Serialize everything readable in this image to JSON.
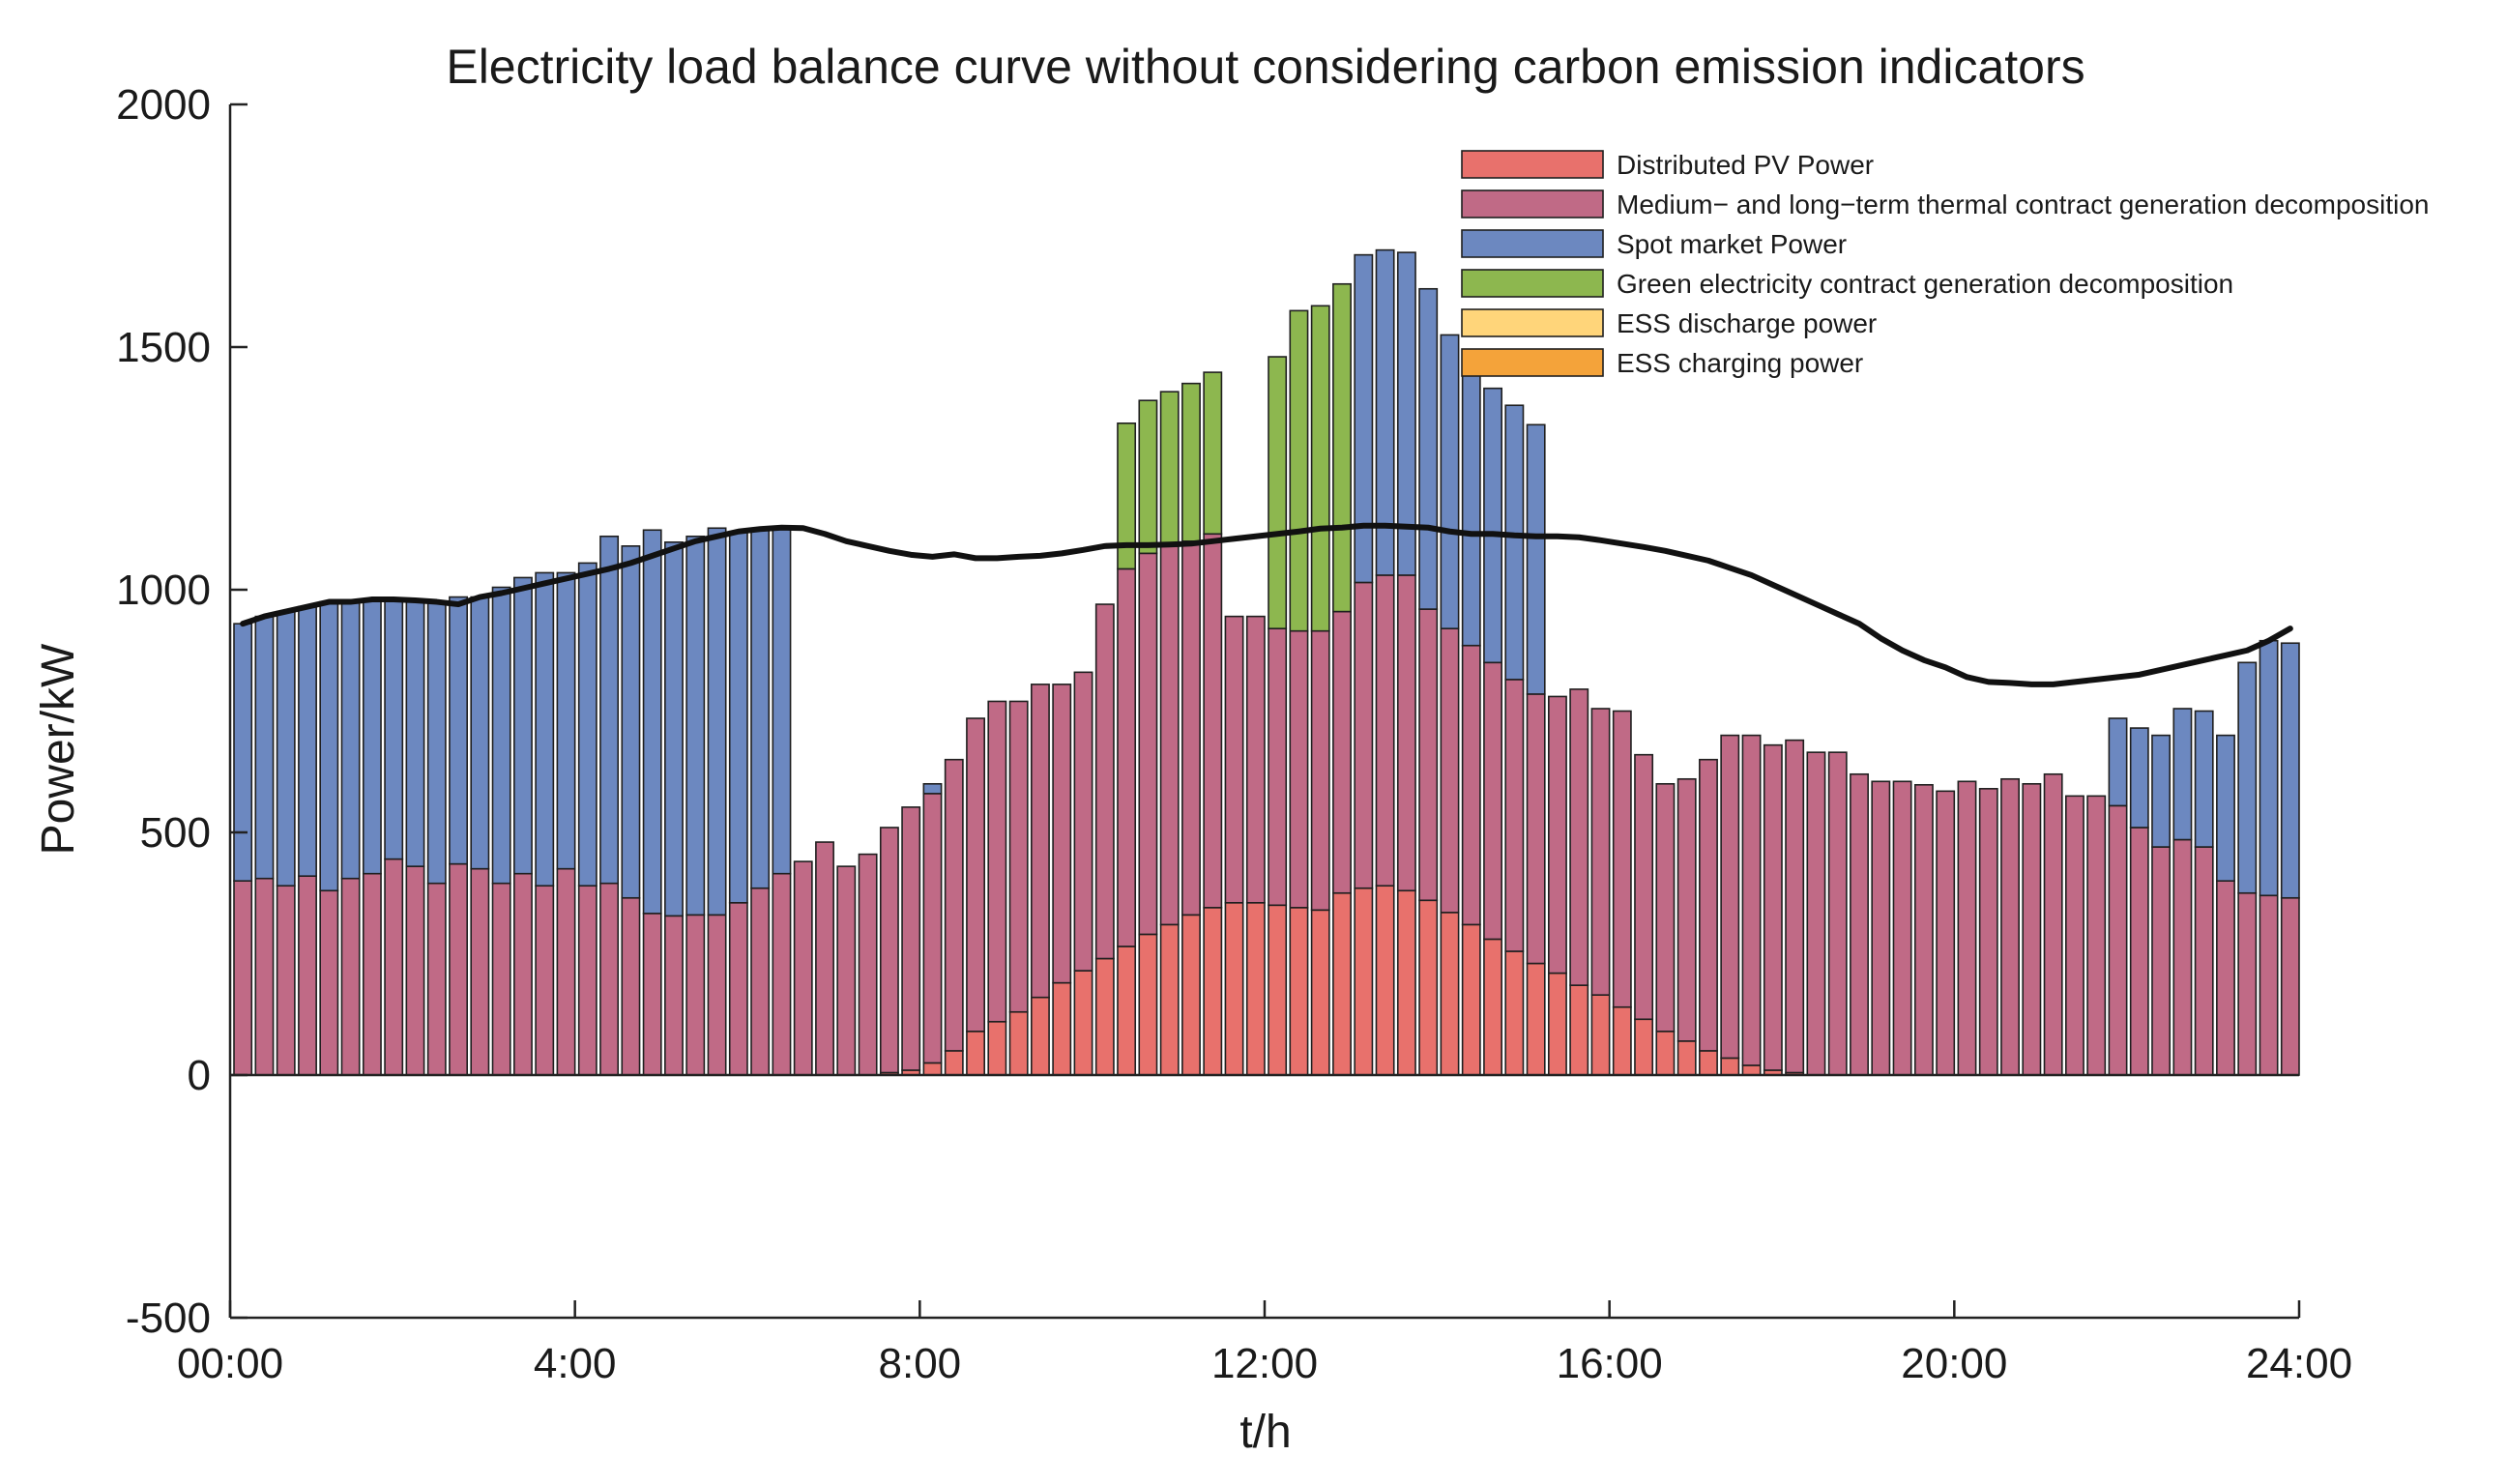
{
  "chart_data": {
    "type": "bar",
    "stacked": true,
    "title": "Electricity load balance curve without considering carbon emission indicators",
    "xlabel": "t/h",
    "ylabel": "Power/kW",
    "ylim": [
      -500,
      2000
    ],
    "yticks": [
      "2000",
      "1500",
      "1000",
      "500",
      "0",
      "-500"
    ],
    "ytick_values": [
      2000,
      1500,
      1000,
      500,
      0,
      -500
    ],
    "xticks": [
      "00:00",
      "4:00",
      "8:00",
      "12:00",
      "16:00",
      "20:00",
      "24:00"
    ],
    "xtick_values": [
      0,
      4,
      8,
      12,
      16,
      20,
      24
    ],
    "interval_hours": 0.25,
    "n_intervals": 96,
    "legend_position": "top-right",
    "colors": {
      "pv": "#E8716C",
      "thermal": "#C06A86",
      "spot": "#6C88C0",
      "green": "#8DB74F",
      "ess_discharge": "#FFD57A",
      "ess_charging": "#F4A33A",
      "load": "#111111",
      "bar_edge": "#1f1f1f"
    },
    "series": [
      {
        "key": "pv",
        "name": "Distributed PV Power"
      },
      {
        "key": "thermal",
        "name": "Medium− and long−term thermal contract generation decomposition"
      },
      {
        "key": "spot",
        "name": "Spot market Power"
      },
      {
        "key": "green",
        "name": "Green electricity contract generation decomposition"
      },
      {
        "key": "ess_discharge",
        "name": "ESS discharge power"
      },
      {
        "key": "ess_charging",
        "name": "ESS charging power"
      }
    ],
    "load": [
      930,
      945,
      955,
      965,
      975,
      975,
      980,
      980,
      978,
      975,
      970,
      985,
      993,
      1003,
      1013,
      1023,
      1033,
      1043,
      1055,
      1070,
      1085,
      1100,
      1110,
      1120,
      1125,
      1128,
      1127,
      1115,
      1100,
      1090,
      1080,
      1072,
      1068,
      1073,
      1065,
      1065,
      1068,
      1070,
      1075,
      1082,
      1090,
      1092,
      1092,
      1093,
      1095,
      1100,
      1105,
      1110,
      1115,
      1120,
      1126,
      1128,
      1132,
      1132,
      1130,
      1128,
      1120,
      1115,
      1115,
      1112,
      1110,
      1110,
      1108,
      1102,
      1095,
      1088,
      1080,
      1070,
      1060,
      1045,
      1030,
      1010,
      990,
      970,
      950,
      930,
      900,
      875,
      855,
      840,
      820,
      810,
      808,
      805,
      805,
      810,
      815,
      820,
      825,
      835,
      845,
      855,
      865,
      875,
      895,
      920
    ],
    "pv": [
      0,
      0,
      0,
      0,
      0,
      0,
      0,
      0,
      0,
      0,
      0,
      0,
      0,
      0,
      0,
      0,
      0,
      0,
      0,
      0,
      0,
      0,
      0,
      0,
      0,
      0,
      0,
      0,
      0,
      0,
      5,
      10,
      25,
      50,
      90,
      110,
      130,
      160,
      190,
      215,
      240,
      265,
      290,
      310,
      330,
      345,
      355,
      355,
      350,
      345,
      340,
      375,
      385,
      390,
      380,
      360,
      335,
      310,
      280,
      255,
      230,
      210,
      185,
      165,
      140,
      115,
      90,
      70,
      50,
      35,
      20,
      10,
      5,
      0,
      0,
      0,
      0,
      0,
      0,
      0,
      0,
      0,
      0,
      0,
      0,
      0,
      0,
      0,
      0,
      0,
      0,
      0,
      0,
      0,
      0,
      0
    ],
    "thermal": [
      400,
      405,
      390,
      410,
      380,
      405,
      415,
      445,
      430,
      395,
      435,
      425,
      395,
      415,
      390,
      425,
      390,
      395,
      365,
      333,
      328,
      330,
      330,
      355,
      385,
      415,
      440,
      480,
      430,
      455,
      505,
      542,
      555,
      600,
      645,
      660,
      640,
      645,
      615,
      615,
      730,
      778,
      785,
      780,
      770,
      770,
      590,
      590,
      570,
      570,
      575,
      580,
      630,
      640,
      650,
      600,
      585,
      575,
      570,
      560,
      555,
      570,
      610,
      590,
      610,
      545,
      510,
      540,
      600,
      665,
      680,
      670,
      685,
      665,
      665,
      620,
      605,
      605,
      598,
      585,
      605,
      590,
      610,
      600,
      620,
      575,
      575,
      555,
      510,
      470,
      485,
      470,
      400,
      375,
      370,
      365
    ],
    "spot": [
      530,
      540,
      565,
      555,
      595,
      570,
      565,
      535,
      548,
      580,
      550,
      560,
      610,
      610,
      645,
      610,
      665,
      715,
      725,
      790,
      770,
      780,
      797,
      765,
      740,
      713,
      0,
      0,
      0,
      0,
      0,
      0,
      20,
      0,
      0,
      0,
      0,
      0,
      0,
      0,
      0,
      0,
      0,
      0,
      0,
      0,
      0,
      0,
      0,
      0,
      0,
      0,
      675,
      670,
      665,
      660,
      605,
      600,
      565,
      565,
      555,
      0,
      0,
      0,
      0,
      0,
      0,
      0,
      0,
      0,
      0,
      0,
      0,
      0,
      0,
      0,
      0,
      0,
      0,
      0,
      0,
      0,
      0,
      0,
      0,
      0,
      0,
      180,
      205,
      230,
      270,
      280,
      300,
      475,
      525,
      525
    ],
    "green": [
      0,
      0,
      0,
      0,
      0,
      0,
      0,
      0,
      0,
      0,
      0,
      0,
      0,
      0,
      0,
      0,
      0,
      0,
      0,
      0,
      0,
      0,
      0,
      0,
      0,
      0,
      0,
      0,
      0,
      0,
      0,
      0,
      0,
      0,
      0,
      0,
      0,
      0,
      0,
      0,
      0,
      300,
      315,
      318,
      325,
      333,
      0,
      0,
      560,
      660,
      670,
      675,
      0,
      0,
      0,
      0,
      0,
      0,
      0,
      0,
      0,
      0,
      0,
      0,
      0,
      0,
      0,
      0,
      0,
      0,
      0,
      0,
      0,
      0,
      0,
      0,
      0,
      0,
      0,
      0,
      0,
      0,
      0,
      0,
      0,
      0,
      0,
      0,
      0,
      0,
      0,
      0,
      0,
      0,
      0,
      0
    ],
    "ess_discharge": [
      0,
      0,
      0,
      0,
      0,
      0,
      0,
      0,
      0,
      0,
      0,
      0,
      0,
      0,
      0,
      0,
      0,
      0,
      0,
      0,
      0,
      0,
      0,
      0,
      0,
      0,
      0,
      0,
      0,
      0,
      0,
      0,
      0,
      0,
      0,
      0,
      0,
      0,
      0,
      0,
      0,
      0,
      0,
      0,
      0,
      0,
      0,
      0,
      0,
      0,
      0,
      0,
      0,
      0,
      0,
      0,
      0,
      0,
      0,
      0,
      0,
      0,
      0,
      0,
      0,
      0,
      0,
      0,
      0,
      0,
      0,
      0,
      0,
      0,
      0,
      0,
      0,
      0,
      0,
      0,
      0,
      0,
      0,
      0,
      0,
      0,
      0,
      0,
      0,
      0,
      0,
      0,
      0,
      0,
      0,
      0
    ],
    "ess_charging": [
      0,
      0,
      0,
      0,
      0,
      0,
      0,
      0,
      0,
      0,
      0,
      0,
      0,
      0,
      0,
      0,
      0,
      0,
      0,
      0,
      0,
      0,
      0,
      0,
      0,
      0,
      0,
      0,
      0,
      0,
      0,
      0,
      0,
      0,
      0,
      0,
      0,
      0,
      0,
      0,
      0,
      0,
      0,
      0,
      0,
      0,
      0,
      0,
      0,
      0,
      0,
      0,
      0,
      0,
      0,
      0,
      0,
      0,
      0,
      0,
      0,
      0,
      0,
      0,
      0,
      0,
      0,
      0,
      0,
      0,
      0,
      0,
      0,
      0,
      0,
      0,
      0,
      0,
      0,
      0,
      0,
      0,
      0,
      0,
      0,
      0,
      0,
      0,
      0,
      0,
      0,
      0,
      0,
      0,
      0,
      0
    ]
  }
}
